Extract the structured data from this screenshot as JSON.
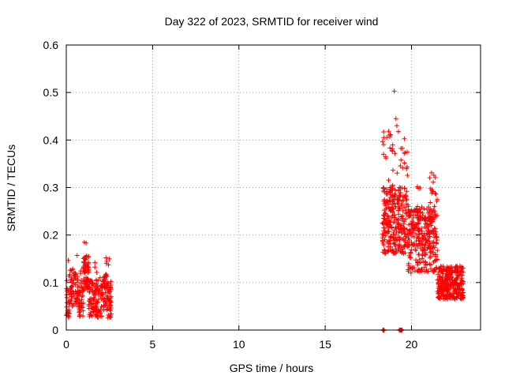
{
  "chart_data": {
    "type": "scatter",
    "title": "Day 322 of 2023, SRMTID for receiver wind",
    "xlabel": "GPS time / hours",
    "ylabel": "SRMTID / TECUs",
    "xlim": [
      0,
      24
    ],
    "ylim": [
      0,
      0.6
    ],
    "xticks": [
      0,
      5,
      10,
      15,
      20
    ],
    "xtick_labels": [
      "0",
      "5",
      "10",
      "15",
      "20"
    ],
    "yticks": [
      0,
      0.1,
      0.2,
      0.3,
      0.4,
      0.5,
      0.6
    ],
    "ytick_labels": [
      "0",
      "0.1",
      "0.2",
      "0.3",
      "0.4",
      "0.5",
      "0.6"
    ],
    "grid": true,
    "marker": "+",
    "color": "#ff0000",
    "clusters": [
      {
        "name": "early",
        "x_range": [
          0.0,
          2.6
        ],
        "y_min": 0.02,
        "y_max": 0.185,
        "count": 420
      },
      {
        "name": "late",
        "x_range": [
          18.3,
          23.0
        ],
        "y_min": 0.03,
        "y_max": 0.505,
        "count": 950
      }
    ],
    "highlight_points": [
      {
        "x": 19.0,
        "y": 0.503
      },
      {
        "x": 19.1,
        "y": 0.445
      },
      {
        "x": 18.75,
        "y": 0.41
      },
      {
        "x": 19.15,
        "y": 0.43
      },
      {
        "x": 1.15,
        "y": 0.183
      },
      {
        "x": 2.3,
        "y": 0.152
      }
    ],
    "zero_points_x": [
      18.35,
      18.4,
      19.3,
      19.35,
      19.4,
      19.45
    ]
  }
}
